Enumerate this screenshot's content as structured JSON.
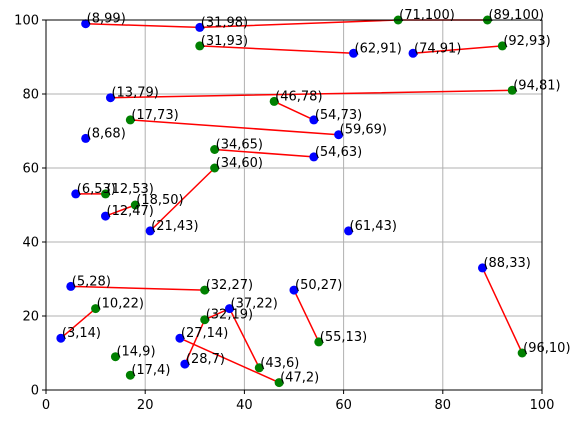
{
  "chart_data": {
    "type": "scatter",
    "title": "",
    "xlabel": "",
    "ylabel": "",
    "xlim": [
      0,
      100
    ],
    "ylim": [
      0,
      100
    ],
    "grid": true,
    "x_ticks": [
      0,
      20,
      40,
      60,
      80,
      100
    ],
    "y_ticks": [
      0,
      20,
      40,
      60,
      80,
      100
    ],
    "colors": {
      "blue_point": "#0000ff",
      "green_point": "#008000",
      "line": "#ff0000",
      "grid": "#b0b0b0",
      "axis": "#000000"
    },
    "points": [
      {
        "x": 8,
        "y": 99,
        "label": "(8,99)",
        "color": "blue"
      },
      {
        "x": 31,
        "y": 98,
        "label": "(31,98)",
        "color": "blue"
      },
      {
        "x": 71,
        "y": 100,
        "label": "(71,100)",
        "color": "green"
      },
      {
        "x": 89,
        "y": 100,
        "label": "(89,100)",
        "color": "green"
      },
      {
        "x": 31,
        "y": 93,
        "label": "(31,93)",
        "color": "green"
      },
      {
        "x": 62,
        "y": 91,
        "label": "(62,91)",
        "color": "blue"
      },
      {
        "x": 74,
        "y": 91,
        "label": "(74,91)",
        "color": "blue"
      },
      {
        "x": 92,
        "y": 93,
        "label": "(92,93)",
        "color": "green"
      },
      {
        "x": 13,
        "y": 79,
        "label": "(13,79)",
        "color": "blue"
      },
      {
        "x": 94,
        "y": 81,
        "label": "(94,81)",
        "color": "green"
      },
      {
        "x": 46,
        "y": 78,
        "label": "(46,78)",
        "color": "green"
      },
      {
        "x": 54,
        "y": 73,
        "label": "(54,73)",
        "color": "blue"
      },
      {
        "x": 17,
        "y": 73,
        "label": "(17,73)",
        "color": "green"
      },
      {
        "x": 59,
        "y": 69,
        "label": "(59,69)",
        "color": "blue"
      },
      {
        "x": 8,
        "y": 68,
        "label": "(8,68)",
        "color": "blue"
      },
      {
        "x": 34,
        "y": 65,
        "label": "(34,65)",
        "color": "green"
      },
      {
        "x": 54,
        "y": 63,
        "label": "(54,63)",
        "color": "blue"
      },
      {
        "x": 34,
        "y": 60,
        "label": "(34,60)",
        "color": "green"
      },
      {
        "x": 6,
        "y": 53,
        "label": "(6,53)",
        "color": "blue"
      },
      {
        "x": 12,
        "y": 53,
        "label": "(12,53)",
        "color": "green"
      },
      {
        "x": 18,
        "y": 50,
        "label": "(18,50)",
        "color": "green"
      },
      {
        "x": 12,
        "y": 47,
        "label": "(12,47)",
        "color": "blue"
      },
      {
        "x": 21,
        "y": 43,
        "label": "(21,43)",
        "color": "blue"
      },
      {
        "x": 61,
        "y": 43,
        "label": "(61,43)",
        "color": "blue"
      },
      {
        "x": 88,
        "y": 33,
        "label": "(88,33)",
        "color": "blue"
      },
      {
        "x": 5,
        "y": 28,
        "label": "(5,28)",
        "color": "blue"
      },
      {
        "x": 32,
        "y": 27,
        "label": "(32,27)",
        "color": "green"
      },
      {
        "x": 50,
        "y": 27,
        "label": "(50,27)",
        "color": "blue"
      },
      {
        "x": 10,
        "y": 22,
        "label": "(10,22)",
        "color": "green"
      },
      {
        "x": 37,
        "y": 22,
        "label": "(37,22)",
        "color": "blue"
      },
      {
        "x": 32,
        "y": 19,
        "label": "(32,19)",
        "color": "green"
      },
      {
        "x": 3,
        "y": 14,
        "label": "(3,14)",
        "color": "blue"
      },
      {
        "x": 27,
        "y": 14,
        "label": "(27,14)",
        "color": "blue"
      },
      {
        "x": 55,
        "y": 13,
        "label": "(55,13)",
        "color": "green"
      },
      {
        "x": 96,
        "y": 10,
        "label": "(96,10)",
        "color": "green"
      },
      {
        "x": 14,
        "y": 9,
        "label": "(14,9)",
        "color": "green"
      },
      {
        "x": 28,
        "y": 7,
        "label": "(28,7)",
        "color": "blue"
      },
      {
        "x": 43,
        "y": 6,
        "label": "(43,6)",
        "color": "green"
      },
      {
        "x": 17,
        "y": 4,
        "label": "(17,4)",
        "color": "green"
      },
      {
        "x": 47,
        "y": 2,
        "label": "(47,2)",
        "color": "green"
      }
    ],
    "segments": [
      {
        "from": [
          8,
          99
        ],
        "to": [
          31,
          98
        ]
      },
      {
        "from": [
          31,
          98
        ],
        "to": [
          71,
          100
        ]
      },
      {
        "from": [
          71,
          100
        ],
        "to": [
          89,
          100
        ]
      },
      {
        "from": [
          31,
          93
        ],
        "to": [
          62,
          91
        ]
      },
      {
        "from": [
          74,
          91
        ],
        "to": [
          92,
          93
        ]
      },
      {
        "from": [
          13,
          79
        ],
        "to": [
          94,
          81
        ]
      },
      {
        "from": [
          46,
          78
        ],
        "to": [
          54,
          73
        ]
      },
      {
        "from": [
          17,
          73
        ],
        "to": [
          59,
          69
        ]
      },
      {
        "from": [
          34,
          65
        ],
        "to": [
          54,
          63
        ]
      },
      {
        "from": [
          6,
          53
        ],
        "to": [
          12,
          53
        ]
      },
      {
        "from": [
          18,
          50
        ],
        "to": [
          12,
          47
        ]
      },
      {
        "from": [
          21,
          43
        ],
        "to": [
          34,
          60
        ]
      },
      {
        "from": [
          5,
          28
        ],
        "to": [
          32,
          27
        ]
      },
      {
        "from": [
          10,
          22
        ],
        "to": [
          3,
          14
        ]
      },
      {
        "from": [
          32,
          19
        ],
        "to": [
          37,
          22
        ]
      },
      {
        "from": [
          32,
          19
        ],
        "to": [
          28,
          7
        ]
      },
      {
        "from": [
          37,
          22
        ],
        "to": [
          43,
          6
        ]
      },
      {
        "from": [
          27,
          14
        ],
        "to": [
          47,
          2
        ]
      },
      {
        "from": [
          50,
          27
        ],
        "to": [
          55,
          13
        ]
      },
      {
        "from": [
          88,
          33
        ],
        "to": [
          96,
          10
        ]
      }
    ]
  }
}
